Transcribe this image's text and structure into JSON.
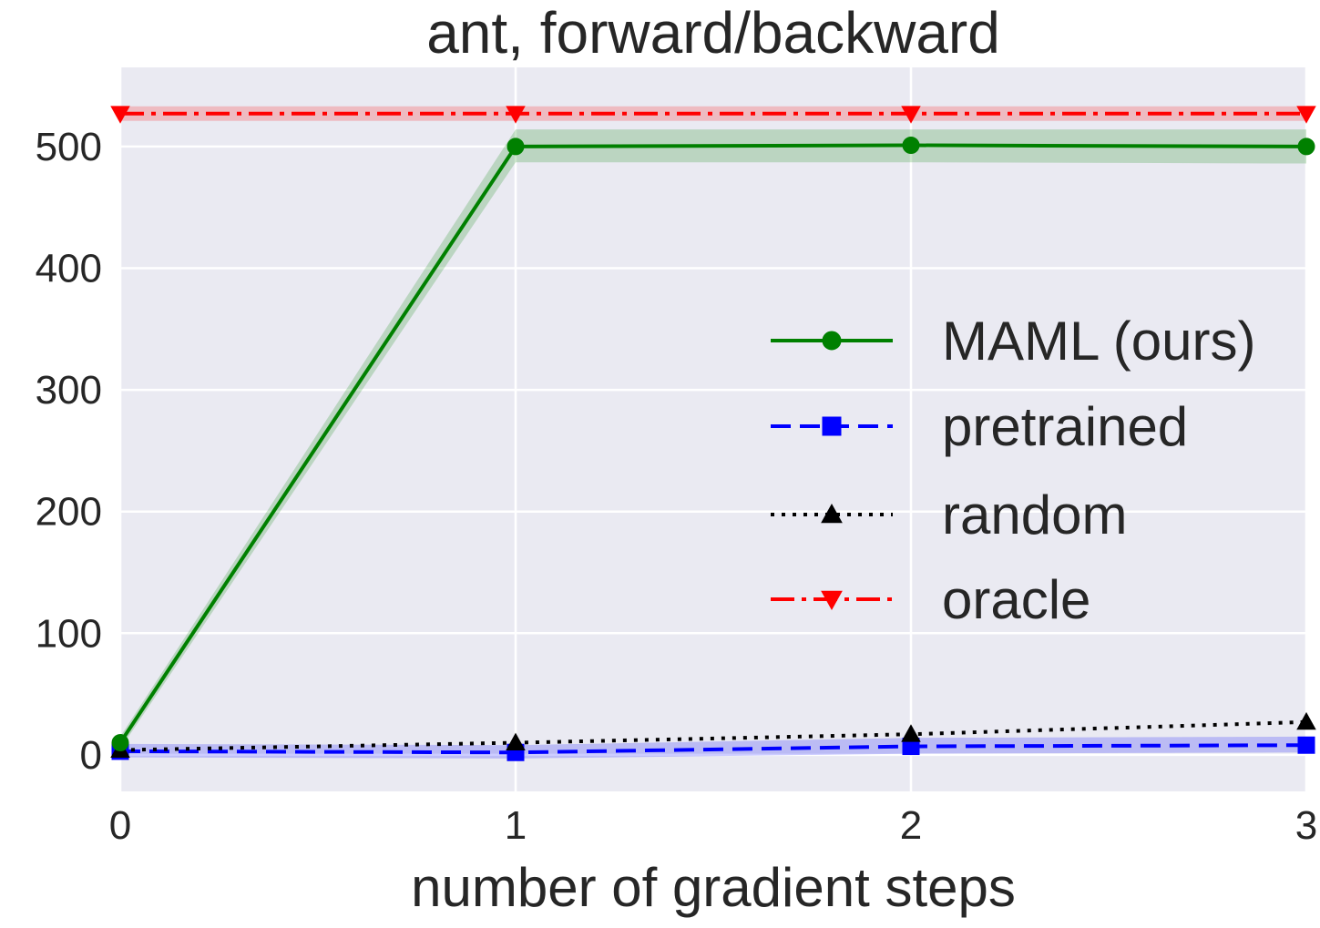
{
  "chart_data": {
    "type": "line",
    "title": "ant, forward/backward",
    "xlabel": "number of gradient steps",
    "ylabel": "",
    "xlim": [
      0,
      3
    ],
    "ylim": [
      -30,
      565
    ],
    "x_ticks": [
      0,
      1,
      2,
      3
    ],
    "y_ticks": [
      0,
      100,
      200,
      300,
      400,
      500
    ],
    "grid": true,
    "legend_position": "center-right",
    "x": [
      0,
      1,
      2,
      3
    ],
    "series": [
      {
        "name": "MAML (ours)",
        "values": [
          10,
          500,
          501,
          500
        ],
        "band_low": [
          5,
          487,
          487,
          486
        ],
        "band_high": [
          15,
          514,
          514,
          514
        ],
        "color": "#008000",
        "line_style": "solid",
        "marker": "circle"
      },
      {
        "name": "pretrained",
        "values": [
          3,
          2,
          7,
          8
        ],
        "band_low": [
          -2,
          -3,
          1,
          2
        ],
        "band_high": [
          9,
          8,
          14,
          15
        ],
        "color": "#0000ff",
        "line_style": "dashed",
        "marker": "square"
      },
      {
        "name": "random",
        "values": [
          4,
          10,
          17,
          27
        ],
        "color": "#000000",
        "line_style": "dotted",
        "marker": "triangle-up"
      },
      {
        "name": "oracle",
        "values": [
          527,
          527,
          527,
          527
        ],
        "band_low": [
          521,
          521,
          521,
          521
        ],
        "band_high": [
          533,
          533,
          533,
          533
        ],
        "color": "#ff0000",
        "line_style": "dashdot",
        "marker": "triangle-down"
      }
    ],
    "colors": {
      "plot_background": "#eaeaf2",
      "grid": "#ffffff"
    }
  }
}
